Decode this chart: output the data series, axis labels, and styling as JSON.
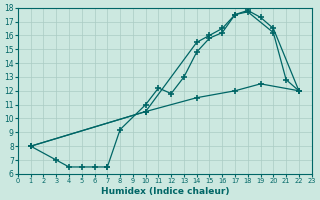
{
  "xlabel": "Humidex (Indice chaleur)",
  "bg_color": "#cce8e0",
  "grid_color": "#aaccc4",
  "line_color": "#006666",
  "xlim": [
    0,
    23
  ],
  "ylim": [
    6,
    18
  ],
  "xticks": [
    0,
    1,
    2,
    3,
    4,
    5,
    6,
    7,
    8,
    9,
    10,
    11,
    12,
    13,
    14,
    15,
    16,
    17,
    18,
    19,
    20,
    21,
    22,
    23
  ],
  "yticks": [
    6,
    7,
    8,
    9,
    10,
    11,
    12,
    13,
    14,
    15,
    16,
    17,
    18
  ],
  "curve_zigzag_x": [
    1,
    3,
    4,
    5,
    6,
    7,
    7,
    8,
    10,
    11,
    12,
    13,
    14,
    15,
    16,
    17,
    18,
    20,
    21,
    22
  ],
  "curve_zigzag_y": [
    8,
    7,
    6.5,
    6.5,
    6.5,
    6.5,
    6.5,
    9.2,
    11.0,
    12.2,
    11.8,
    13.0,
    14.8,
    15.8,
    16.2,
    17.5,
    17.7,
    16.2,
    12.8,
    12.0
  ],
  "curve_upper_x": [
    1,
    10,
    14,
    15,
    16,
    17,
    18,
    19,
    20,
    22
  ],
  "curve_upper_y": [
    8,
    10.5,
    15.5,
    16.0,
    16.5,
    17.5,
    17.8,
    17.3,
    16.5,
    12.0
  ],
  "curve_diag_x": [
    1,
    10,
    14,
    17,
    19,
    22
  ],
  "curve_diag_y": [
    8,
    10.5,
    11.5,
    12.0,
    12.5,
    12.0
  ]
}
